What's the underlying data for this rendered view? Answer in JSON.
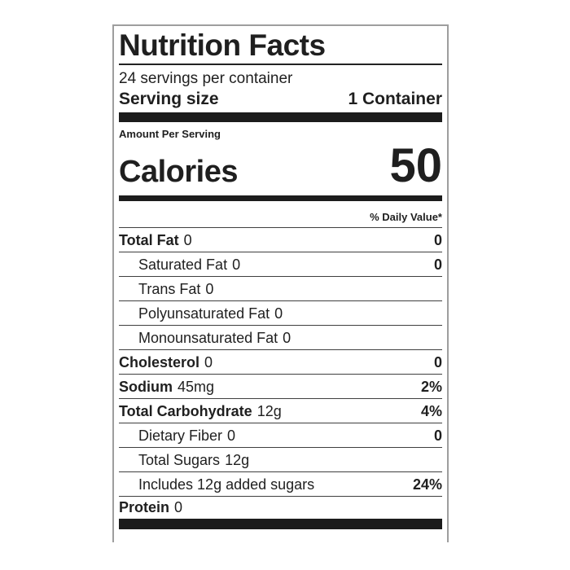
{
  "nutrition_label": {
    "title": "Nutrition Facts",
    "servings_per_container": "24 servings per container",
    "serving_size": {
      "label": "Serving size",
      "value": "1 Container"
    },
    "amount_per_serving": "Amount Per Serving",
    "calories": {
      "label": "Calories",
      "value": "50"
    },
    "daily_value_header": "% Daily Value*",
    "nutrients": [
      {
        "name": "Total Fat",
        "amount": "0",
        "dv": "0",
        "bold": true,
        "indent": 0
      },
      {
        "name": "Saturated Fat",
        "amount": "0",
        "dv": "0",
        "bold": false,
        "indent": 1
      },
      {
        "name": "Trans Fat",
        "amount": "0",
        "dv": "",
        "bold": false,
        "indent": 1
      },
      {
        "name": "Polyunsaturated Fat",
        "amount": "0",
        "dv": "",
        "bold": false,
        "indent": 1
      },
      {
        "name": "Monounsaturated Fat",
        "amount": "0",
        "dv": "",
        "bold": false,
        "indent": 1
      },
      {
        "name": "Cholesterol",
        "amount": "0",
        "dv": "0",
        "bold": true,
        "indent": 0
      },
      {
        "name": "Sodium",
        "amount": "45mg",
        "dv": "2%",
        "bold": true,
        "indent": 0
      },
      {
        "name": "Total Carbohydrate",
        "amount": "12g",
        "dv": "4%",
        "bold": true,
        "indent": 0
      },
      {
        "name": "Dietary Fiber",
        "amount": "0",
        "dv": "0",
        "bold": false,
        "indent": 1
      },
      {
        "name": "Total Sugars",
        "amount": "12g",
        "dv": "",
        "bold": false,
        "indent": 1
      },
      {
        "name": "Includes 12g added sugars",
        "amount": "",
        "dv": "24%",
        "bold": false,
        "indent": 1
      },
      {
        "name": "Protein",
        "amount": "0",
        "dv": "",
        "bold": true,
        "indent": 0
      }
    ],
    "colors": {
      "text": "#1f1f1f",
      "bar": "#1c1c1c",
      "rule": "#3f3f3f",
      "border": "#9e9e9e"
    }
  }
}
